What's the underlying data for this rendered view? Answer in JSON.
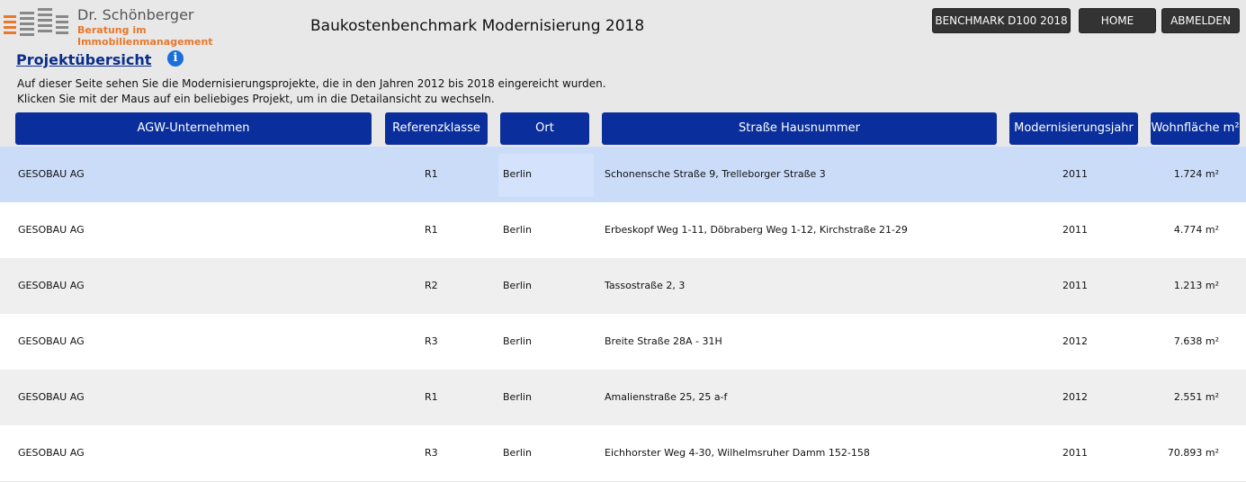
{
  "header": {
    "logo_name": "Dr. Schönberger",
    "logo_tagline": "Beratung im Immobilienmanagement",
    "app_title": "Baukostenbenchmark Modernisierung 2018",
    "buttons": {
      "benchmark": "BENCHMARK D100 2018",
      "home": "HOME",
      "logout": "ABMELDEN"
    }
  },
  "page": {
    "title": "Projektübersicht",
    "info_icon_glyph": "i",
    "description_line1": "Auf dieser Seite sehen Sie die Modernisierungsprojekte, die in den Jahren 2012 bis 2018 eingereicht wurden.",
    "description_line2": "Klicken Sie mit der Maus auf ein beliebiges Projekt, um in die Detailansicht zu wechseln."
  },
  "table": {
    "columns": {
      "company": "AGW-Unternehmen",
      "class": "Referenzklasse",
      "city": "Ort",
      "street": "Straße Hausnummer",
      "year": "Modernisierungsjahr",
      "area": "Wohnfläche m²"
    },
    "rows": [
      {
        "company": "GESOBAU AG",
        "class": "R1",
        "city": "Berlin",
        "street": "Schonensche Straße 9, Trelleborger Straße 3",
        "year": "2011",
        "area": "1.724 m²"
      },
      {
        "company": "GESOBAU AG",
        "class": "R1",
        "city": "Berlin",
        "street": "Erbeskopf Weg 1-11, Döbraberg Weg 1-12, Kirchstraße 21-29",
        "year": "2011",
        "area": "4.774 m²"
      },
      {
        "company": "GESOBAU AG",
        "class": "R2",
        "city": "Berlin",
        "street": "Tassostraße 2, 3",
        "year": "2011",
        "area": "1.213 m²"
      },
      {
        "company": "GESOBAU AG",
        "class": "R3",
        "city": "Berlin",
        "street": "Breite Straße 28A - 31H",
        "year": "2012",
        "area": "7.638 m²"
      },
      {
        "company": "GESOBAU AG",
        "class": "R1",
        "city": "Berlin",
        "street": "Amalienstraße 25, 25 a-f",
        "year": "2012",
        "area": "2.551 m²"
      },
      {
        "company": "GESOBAU AG",
        "class": "R3",
        "city": "Berlin",
        "street": "Eichhorster Weg 4-30, Wilhelmsruher Damm 152-158",
        "year": "2011",
        "area": "70.893 m²"
      }
    ]
  },
  "colors": {
    "header_blue": "#0a2f9c",
    "selected_row": "#cbdcf9",
    "accent_orange": "#e8782a"
  }
}
